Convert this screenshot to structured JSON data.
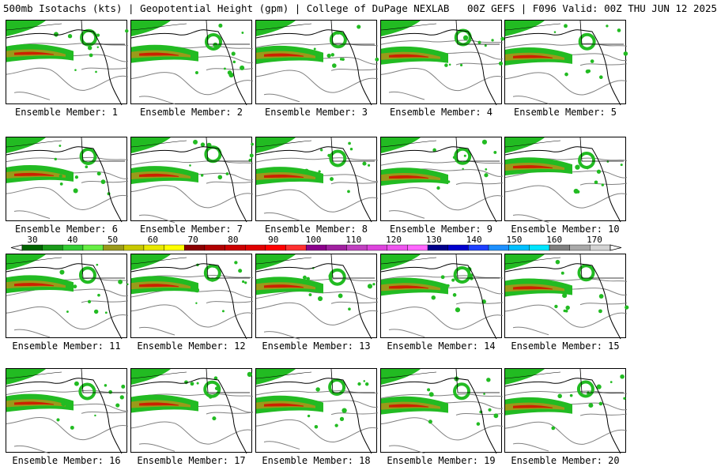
{
  "header": {
    "title": "500mb Isotachs (kts) | Geopotential Height (gpm) | College of DuPage NEXLAB   00Z GEFS | F096 Valid: 00Z THU JUN 12 2025"
  },
  "panels": [
    {
      "label": "Ensemble Member: 1"
    },
    {
      "label": "Ensemble Member: 2"
    },
    {
      "label": "Ensemble Member: 3"
    },
    {
      "label": "Ensemble Member: 4"
    },
    {
      "label": "Ensemble Member: 5"
    },
    {
      "label": "Ensemble Member: 6"
    },
    {
      "label": "Ensemble Member: 7"
    },
    {
      "label": "Ensemble Member: 8"
    },
    {
      "label": "Ensemble Member: 9"
    },
    {
      "label": "Ensemble Member: 10"
    },
    {
      "label": "Ensemble Member: 11"
    },
    {
      "label": "Ensemble Member: 12"
    },
    {
      "label": "Ensemble Member: 13"
    },
    {
      "label": "Ensemble Member: 14"
    },
    {
      "label": "Ensemble Member: 15"
    },
    {
      "label": "Ensemble Member: 16"
    },
    {
      "label": "Ensemble Member: 17"
    },
    {
      "label": "Ensemble Member: 18"
    },
    {
      "label": "Ensemble Member: 19"
    },
    {
      "label": "Ensemble Member: 20"
    }
  ],
  "colorbar": {
    "ticks": [
      "30",
      "40",
      "50",
      "60",
      "70",
      "80",
      "90",
      "100",
      "110",
      "120",
      "130",
      "140",
      "150",
      "160",
      "170"
    ],
    "colors": [
      "#006400",
      "#1a9a1a",
      "#33cc33",
      "#66ee44",
      "#9a9a1a",
      "#c8c800",
      "#e8e800",
      "#ffff00",
      "#8b0000",
      "#b00000",
      "#cc0000",
      "#e00000",
      "#ff0000",
      "#ff3030",
      "#8b008b",
      "#a020a0",
      "#c040c0",
      "#dd44dd",
      "#ee55ee",
      "#ff66ff",
      "#00008b",
      "#0000cd",
      "#1e40ff",
      "#1e90ff",
      "#00bfff",
      "#00e5ff",
      "#808080",
      "#a9a9a9",
      "#d3d3d3"
    ]
  }
}
